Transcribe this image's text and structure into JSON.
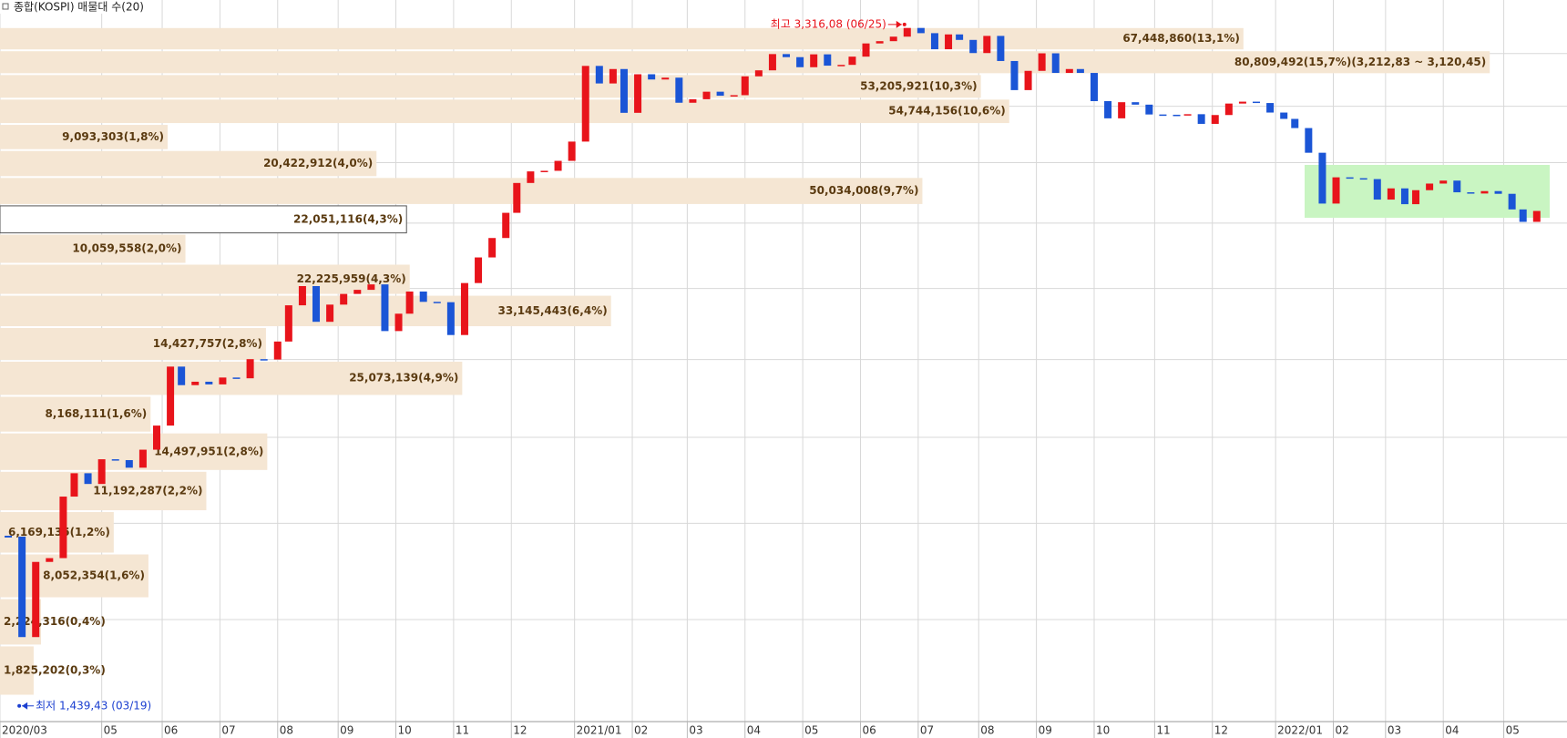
{
  "chart_data": {
    "type": "volume-profile-candles",
    "title": "종합(KOSPI) 매물대 수(20)",
    "log_y": true,
    "ylim": [
      1412,
      3417
    ],
    "xlim": [
      0,
      570
    ],
    "ygrid": [
      1600,
      1800,
      2000,
      2200,
      2400,
      2600,
      2800,
      3000,
      3200
    ],
    "xticks": [
      {
        "value": 0,
        "label": "2020/03"
      },
      {
        "value": 37,
        "label": "05"
      },
      {
        "value": 59,
        "label": "06"
      },
      {
        "value": 80,
        "label": "07"
      },
      {
        "value": 101,
        "label": "08"
      },
      {
        "value": 123,
        "label": "09"
      },
      {
        "value": 144,
        "label": "10"
      },
      {
        "value": 165,
        "label": "11"
      },
      {
        "value": 186,
        "label": "12"
      },
      {
        "value": 209,
        "label": "2021/01"
      },
      {
        "value": 230,
        "label": "02"
      },
      {
        "value": 250,
        "label": "03"
      },
      {
        "value": 271,
        "label": "04"
      },
      {
        "value": 292,
        "label": "05"
      },
      {
        "value": 313,
        "label": "06"
      },
      {
        "value": 334,
        "label": "07"
      },
      {
        "value": 356,
        "label": "08"
      },
      {
        "value": 377,
        "label": "09"
      },
      {
        "value": 398,
        "label": "10"
      },
      {
        "value": 420,
        "label": "11"
      },
      {
        "value": 441,
        "label": "12"
      },
      {
        "value": 464,
        "label": "2022/01"
      },
      {
        "value": 485,
        "label": "02"
      },
      {
        "value": 504,
        "label": "03"
      },
      {
        "value": 525,
        "label": "04"
      },
      {
        "value": 547,
        "label": "05"
      }
    ],
    "up_color": "#e8141b",
    "down_color": "#1b55d6",
    "candles": {
      "x": [
        3,
        8,
        13,
        18,
        23,
        27,
        32,
        37,
        42,
        47,
        52,
        57,
        62,
        66,
        71,
        76,
        81,
        86,
        91,
        96,
        101,
        105,
        110,
        115,
        120,
        125,
        130,
        135,
        140,
        145,
        149,
        154,
        159,
        164,
        169,
        174,
        179,
        184,
        188,
        193,
        198,
        203,
        208,
        213,
        218,
        223,
        227,
        232,
        237,
        242,
        247,
        252,
        257,
        262,
        267,
        271,
        276,
        281,
        286,
        291,
        296,
        301,
        306,
        310,
        315,
        320,
        325,
        330,
        335,
        340,
        345,
        349,
        354,
        359,
        364,
        369,
        374,
        379,
        384,
        389,
        393,
        398,
        403,
        408,
        413,
        418,
        423,
        428,
        432,
        437,
        442,
        447,
        452,
        457,
        462,
        467,
        471,
        476,
        481,
        486,
        491,
        496,
        501,
        506,
        511,
        515,
        520,
        525,
        530,
        535,
        540,
        545,
        550,
        554,
        559
      ],
      "close": [
        1771,
        1566,
        1717,
        1725,
        1860,
        1914,
        1889,
        1947,
        1945,
        1927,
        1970,
        2029,
        2181,
        2132,
        2141,
        2134,
        2152,
        2150,
        2201,
        2200,
        2249,
        2351,
        2407,
        2304,
        2353,
        2384,
        2396,
        2412,
        2278,
        2327,
        2391,
        2361,
        2360,
        2267,
        2416,
        2493,
        2553,
        2633,
        2731,
        2770,
        2772,
        2806,
        2873,
        3152,
        3085,
        3140,
        2976,
        3120,
        3100,
        3107,
        3013,
        3026,
        3054,
        3039,
        3041,
        3112,
        3135,
        3198,
        3186,
        3147,
        3197,
        3153,
        3156,
        3188,
        3240,
        3249,
        3267,
        3302,
        3281,
        3217,
        3276,
        3254,
        3202,
        3270,
        3171,
        3060,
        3133,
        3201,
        3125,
        3140,
        3125,
        3019,
        2956,
        3015,
        3006,
        2970,
        2969,
        2968,
        2971,
        2936,
        2968,
        3010,
        3017,
        3012,
        2977,
        2954,
        2921,
        2834,
        2663,
        2750,
        2747,
        2744,
        2676,
        2713,
        2661,
        2707,
        2729,
        2739,
        2700,
        2696,
        2704,
        2695,
        2644,
        2604,
        2639
      ]
    },
    "profile": {
      "color": "#f5e6d3",
      "current_color": "#ffffff",
      "current_band": 12,
      "xlim": [
        0,
        85000000
      ],
      "bins": [
        1457.61,
        1549.99,
        1642.37,
        1734.75,
        1827.13,
        1919.51,
        2011.89,
        2104.27,
        2196.65,
        2289.03,
        2381.41,
        2473.79,
        2566.17,
        2658.55,
        2750.93,
        2843.31,
        2935.69,
        3028.07,
        3120.45,
        3212.83,
        3305.21
      ],
      "values": [
        1825202,
        2224316,
        8052354,
        6169135,
        11192287,
        14497951,
        8168111,
        25073139,
        14427757,
        33145443,
        22225959,
        10059558,
        22051116,
        50034008,
        20422912,
        9093303,
        54744156,
        53205921,
        80809492,
        67448860
      ],
      "value_labels": [
        "1,825,202(0,3%)",
        "2,224,316(0,4%)",
        "8,052,354(1,6%)",
        "6,169,135(1,2%)",
        "11,192,287(2,2%)",
        "14,497,951(2,8%)",
        "8,168,111(1,6%)",
        "25,073,139(4,9%)",
        "14,427,757(2,8%)",
        "33,145,443(6,4%)",
        "22,225,959(4,3%)",
        "10,059,558(2,0%)",
        "22,051,116(4,3%)",
        "50,034,008(9,7%)",
        "20,422,912(4,0%)",
        "9,093,303(1,8%)",
        "54,744,156(10,6%)",
        "53,205,921(10,3%)",
        "80,809,492(15,7%)(3,212,83 ~ 3,120,45)",
        "67,448,860(13,1%)"
      ]
    },
    "high": {
      "value": 3316.08,
      "x": 329,
      "label": "최고 3,316,08 (06/25)",
      "color": "#e8141b"
    },
    "low": {
      "value": 1439.43,
      "x": 7,
      "label": "최저 1,439,43 (03/19)",
      "color": "#1b3fd0"
    }
  }
}
